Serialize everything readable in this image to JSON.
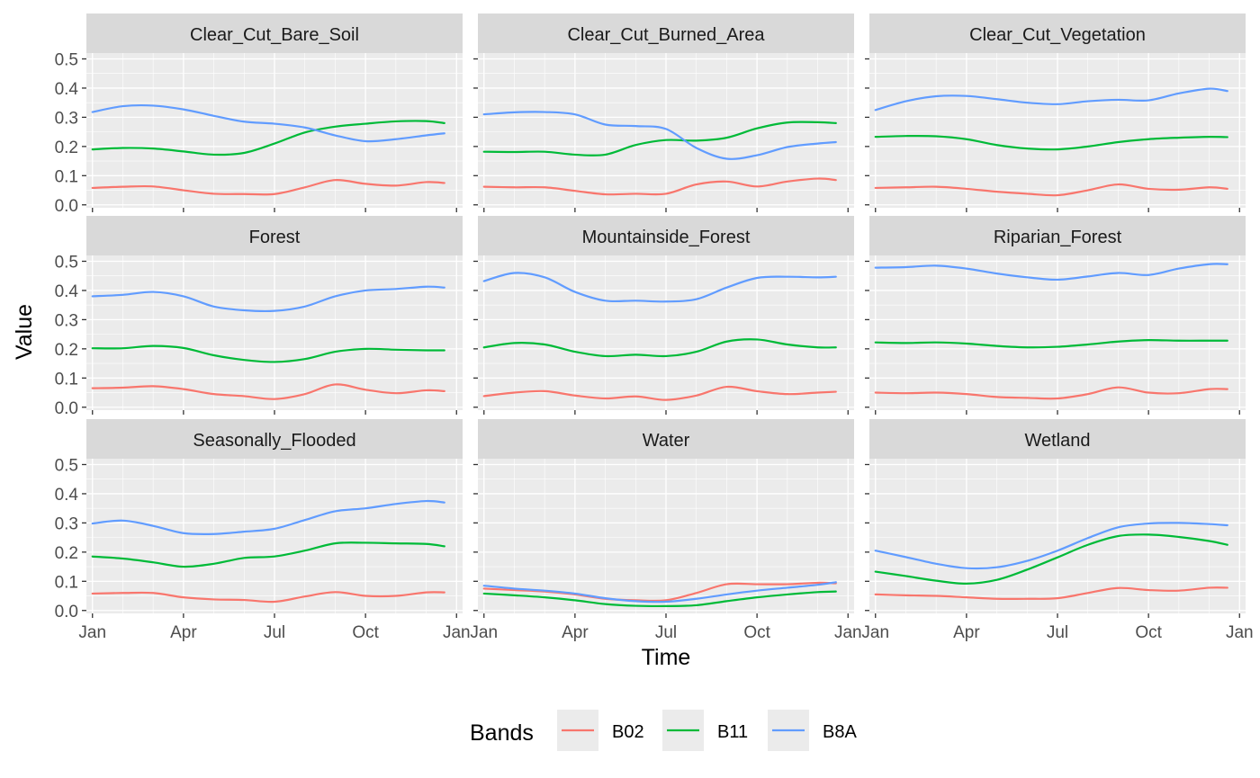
{
  "chart_data": {
    "type": "line",
    "xlabel": "Time",
    "ylabel": "Value",
    "x_ticks": [
      "Jan",
      "Apr",
      "Jul",
      "Oct",
      "Jan"
    ],
    "x_tick_months": [
      0,
      3,
      6,
      9,
      12
    ],
    "xlim": [
      -0.2,
      12.2
    ],
    "y_ticks": [
      "0.0",
      "0.1",
      "0.2",
      "0.3",
      "0.4",
      "0.5"
    ],
    "ylim": [
      -0.01,
      0.52
    ],
    "grid": true,
    "legend": {
      "title": "Bands",
      "position": "bottom",
      "entries": [
        {
          "name": "B02",
          "color": "#F8766D"
        },
        {
          "name": "B11",
          "color": "#00BA38"
        },
        {
          "name": "B8A",
          "color": "#619CFF"
        }
      ]
    },
    "colors": {
      "B02": "#F8766D",
      "B11": "#00BA38",
      "B8A": "#619CFF",
      "panel_bg": "#EBEBEB",
      "strip_bg": "#D9D9D9"
    },
    "x_months": [
      0,
      1,
      2,
      3,
      4,
      5,
      6,
      7,
      8,
      9,
      10,
      11,
      11.6
    ],
    "panels": [
      {
        "title": "Clear_Cut_Bare_Soil",
        "series": [
          {
            "name": "B02",
            "values": [
              0.058,
              0.062,
              0.063,
              0.05,
              0.038,
              0.037,
              0.037,
              0.06,
              0.085,
              0.072,
              0.066,
              0.078,
              0.075
            ]
          },
          {
            "name": "B11",
            "values": [
              0.19,
              0.195,
              0.193,
              0.183,
              0.172,
              0.178,
              0.21,
              0.248,
              0.268,
              0.278,
              0.286,
              0.287,
              0.28
            ]
          },
          {
            "name": "B8A",
            "values": [
              0.318,
              0.338,
              0.34,
              0.327,
              0.305,
              0.285,
              0.278,
              0.265,
              0.238,
              0.218,
              0.225,
              0.238,
              0.245
            ]
          }
        ]
      },
      {
        "title": "Clear_Cut_Burned_Area",
        "series": [
          {
            "name": "B02",
            "values": [
              0.062,
              0.06,
              0.06,
              0.048,
              0.036,
              0.038,
              0.038,
              0.07,
              0.08,
              0.063,
              0.08,
              0.09,
              0.085
            ]
          },
          {
            "name": "B11",
            "values": [
              0.182,
              0.181,
              0.182,
              0.172,
              0.172,
              0.205,
              0.222,
              0.22,
              0.23,
              0.262,
              0.282,
              0.283,
              0.28
            ]
          },
          {
            "name": "B8A",
            "values": [
              0.31,
              0.317,
              0.318,
              0.31,
              0.275,
              0.27,
              0.26,
              0.195,
              0.158,
              0.17,
              0.198,
              0.21,
              0.215
            ]
          }
        ]
      },
      {
        "title": "Clear_Cut_Vegetation",
        "series": [
          {
            "name": "B02",
            "values": [
              0.058,
              0.06,
              0.062,
              0.055,
              0.045,
              0.038,
              0.033,
              0.05,
              0.07,
              0.055,
              0.052,
              0.06,
              0.055
            ]
          },
          {
            "name": "B11",
            "values": [
              0.233,
              0.236,
              0.235,
              0.225,
              0.205,
              0.193,
              0.19,
              0.2,
              0.215,
              0.225,
              0.23,
              0.233,
              0.232
            ]
          },
          {
            "name": "B8A",
            "values": [
              0.325,
              0.355,
              0.372,
              0.373,
              0.362,
              0.35,
              0.345,
              0.355,
              0.36,
              0.358,
              0.382,
              0.398,
              0.39
            ]
          }
        ]
      },
      {
        "title": "Forest",
        "series": [
          {
            "name": "B02",
            "values": [
              0.065,
              0.067,
              0.072,
              0.062,
              0.045,
              0.038,
              0.028,
              0.045,
              0.078,
              0.06,
              0.048,
              0.058,
              0.055
            ]
          },
          {
            "name": "B11",
            "values": [
              0.202,
              0.202,
              0.21,
              0.203,
              0.178,
              0.162,
              0.155,
              0.165,
              0.19,
              0.2,
              0.197,
              0.195,
              0.195
            ]
          },
          {
            "name": "B8A",
            "values": [
              0.38,
              0.385,
              0.395,
              0.38,
              0.345,
              0.332,
              0.33,
              0.345,
              0.38,
              0.4,
              0.405,
              0.413,
              0.41
            ]
          }
        ]
      },
      {
        "title": "Mountainside_Forest",
        "series": [
          {
            "name": "B02",
            "values": [
              0.038,
              0.05,
              0.055,
              0.04,
              0.03,
              0.037,
              0.025,
              0.04,
              0.07,
              0.055,
              0.045,
              0.05,
              0.053
            ]
          },
          {
            "name": "B11",
            "values": [
              0.205,
              0.22,
              0.215,
              0.19,
              0.175,
              0.18,
              0.175,
              0.19,
              0.225,
              0.232,
              0.215,
              0.205,
              0.205
            ]
          },
          {
            "name": "B8A",
            "values": [
              0.432,
              0.46,
              0.445,
              0.395,
              0.365,
              0.365,
              0.362,
              0.37,
              0.41,
              0.443,
              0.447,
              0.445,
              0.447
            ]
          }
        ]
      },
      {
        "title": "Riparian_Forest",
        "series": [
          {
            "name": "B02",
            "values": [
              0.05,
              0.048,
              0.05,
              0.045,
              0.035,
              0.032,
              0.03,
              0.045,
              0.068,
              0.05,
              0.048,
              0.062,
              0.062
            ]
          },
          {
            "name": "B11",
            "values": [
              0.222,
              0.22,
              0.222,
              0.218,
              0.21,
              0.205,
              0.207,
              0.215,
              0.225,
              0.23,
              0.228,
              0.228,
              0.228
            ]
          },
          {
            "name": "B8A",
            "values": [
              0.478,
              0.48,
              0.485,
              0.475,
              0.458,
              0.445,
              0.437,
              0.448,
              0.46,
              0.453,
              0.475,
              0.49,
              0.49
            ]
          }
        ]
      },
      {
        "title": "Seasonally_Flooded",
        "series": [
          {
            "name": "B02",
            "values": [
              0.058,
              0.06,
              0.06,
              0.045,
              0.038,
              0.036,
              0.03,
              0.048,
              0.063,
              0.05,
              0.05,
              0.062,
              0.062
            ]
          },
          {
            "name": "B11",
            "values": [
              0.185,
              0.178,
              0.165,
              0.15,
              0.16,
              0.18,
              0.185,
              0.205,
              0.23,
              0.232,
              0.23,
              0.228,
              0.22
            ]
          },
          {
            "name": "B8A",
            "values": [
              0.298,
              0.308,
              0.29,
              0.265,
              0.262,
              0.27,
              0.28,
              0.31,
              0.34,
              0.35,
              0.365,
              0.375,
              0.37
            ]
          }
        ]
      },
      {
        "title": "Water",
        "series": [
          {
            "name": "B02",
            "values": [
              0.075,
              0.07,
              0.065,
              0.055,
              0.04,
              0.035,
              0.035,
              0.06,
              0.09,
              0.09,
              0.09,
              0.095,
              0.093
            ]
          },
          {
            "name": "B11",
            "values": [
              0.058,
              0.052,
              0.045,
              0.035,
              0.022,
              0.016,
              0.015,
              0.018,
              0.032,
              0.045,
              0.055,
              0.063,
              0.065
            ]
          },
          {
            "name": "B8A",
            "values": [
              0.085,
              0.075,
              0.068,
              0.058,
              0.042,
              0.032,
              0.03,
              0.04,
              0.055,
              0.068,
              0.078,
              0.088,
              0.097
            ]
          }
        ]
      },
      {
        "title": "Wetland",
        "series": [
          {
            "name": "B02",
            "values": [
              0.055,
              0.052,
              0.05,
              0.045,
              0.04,
              0.04,
              0.042,
              0.06,
              0.077,
              0.07,
              0.068,
              0.078,
              0.078
            ]
          },
          {
            "name": "B11",
            "values": [
              0.133,
              0.118,
              0.102,
              0.092,
              0.105,
              0.14,
              0.182,
              0.225,
              0.255,
              0.26,
              0.252,
              0.238,
              0.225
            ]
          },
          {
            "name": "B8A",
            "values": [
              0.205,
              0.183,
              0.16,
              0.145,
              0.148,
              0.17,
              0.205,
              0.248,
              0.285,
              0.298,
              0.3,
              0.296,
              0.292
            ]
          }
        ]
      }
    ]
  }
}
